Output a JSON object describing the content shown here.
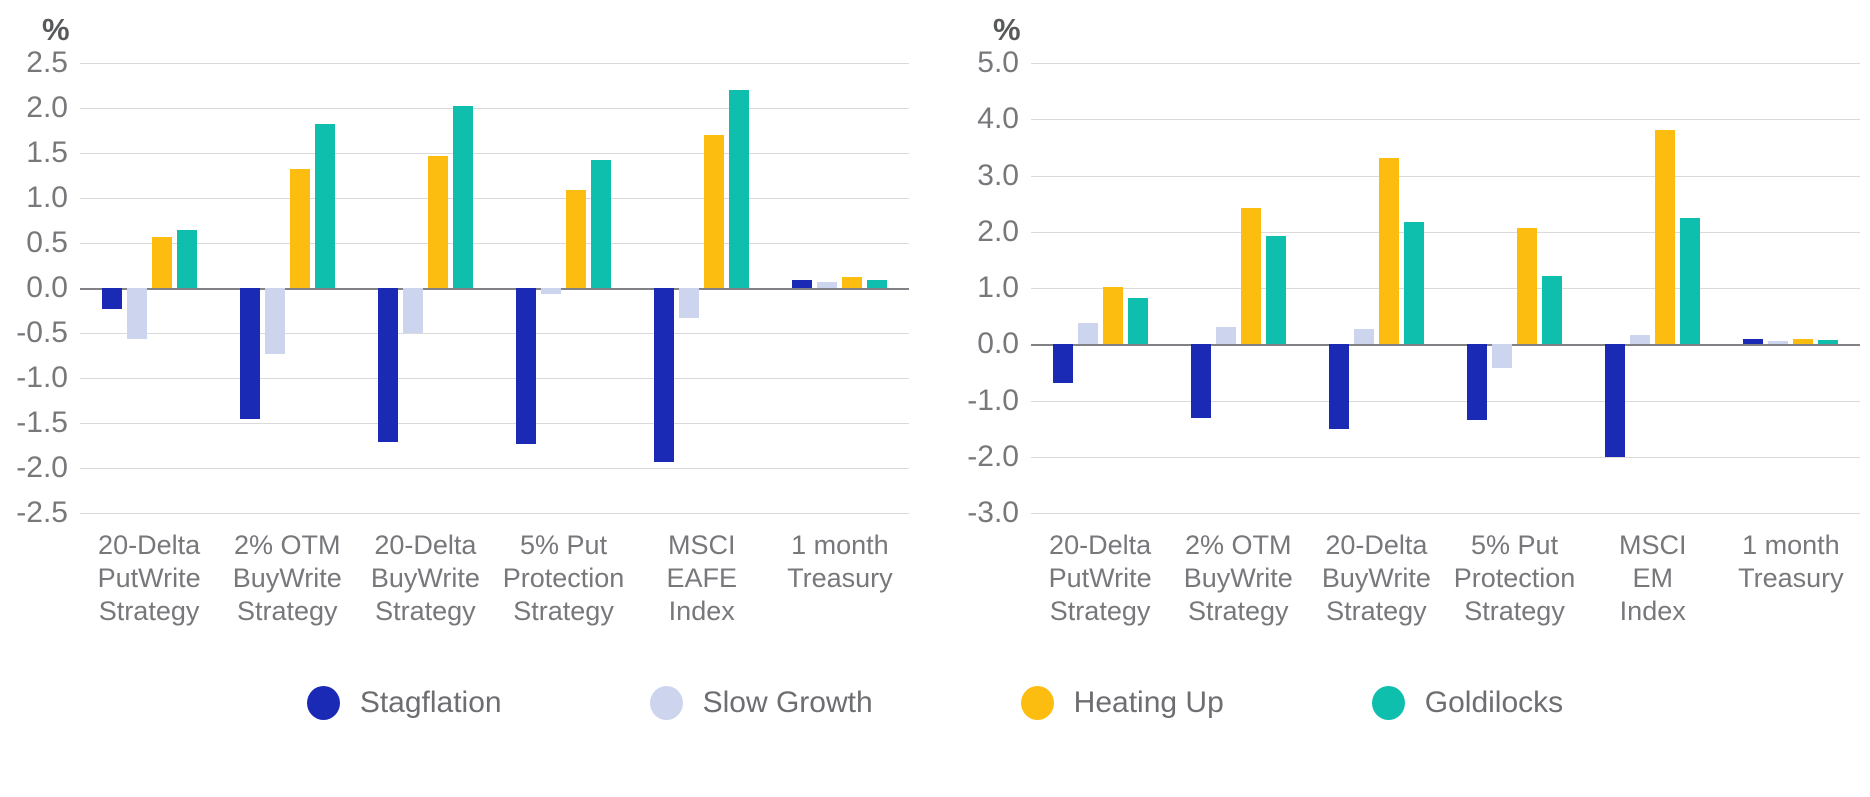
{
  "colors": {
    "background": "#ffffff",
    "stagflation": "#1a2ab5",
    "slow_growth": "#cdd4ee",
    "heating_up": "#fdbd10",
    "goldilocks": "#0fbfae",
    "gridline": "#dadada",
    "zero_line": "#808285",
    "axis_text": "#77787b",
    "unit_text": "#58595b"
  },
  "legend": {
    "items": [
      {
        "label": "Stagflation",
        "color": "#1a2ab5"
      },
      {
        "label": "Slow Growth",
        "color": "#cdd4ee"
      },
      {
        "label": "Heating Up",
        "color": "#fdbd10"
      },
      {
        "label": "Goldilocks",
        "color": "#0fbfae"
      }
    ]
  },
  "chart_data": [
    {
      "type": "bar",
      "title": "",
      "ylabel": "%",
      "xlabel": "",
      "grid": true,
      "legend_position": "bottom",
      "ylim": [
        -2.5,
        2.5
      ],
      "ytick_step": 0.5,
      "categories": [
        "20-Delta\nPutWrite\nStrategy",
        "2% OTM\nBuyWrite\nStrategy",
        "20-Delta\nBuyWrite\nStrategy",
        "5% Put\nProtection\nStrategy",
        "MSCI\nEAFE\nIndex",
        "1 month\nTreasury"
      ],
      "series": [
        {
          "name": "Stagflation",
          "color": "#1a2ab5",
          "values": [
            -0.23,
            -1.45,
            -1.71,
            -1.73,
            -1.93,
            0.09
          ]
        },
        {
          "name": "Slow Growth",
          "color": "#cdd4ee",
          "values": [
            -0.57,
            -0.73,
            -0.5,
            -0.07,
            -0.33,
            0.07
          ]
        },
        {
          "name": "Heating Up",
          "color": "#fdbd10",
          "values": [
            0.57,
            1.32,
            1.47,
            1.09,
            1.7,
            0.12
          ]
        },
        {
          "name": "Goldilocks",
          "color": "#0fbfae",
          "values": [
            0.64,
            1.82,
            2.02,
            1.42,
            2.2,
            0.09
          ]
        }
      ]
    },
    {
      "type": "bar",
      "title": "",
      "ylabel": "%",
      "xlabel": "",
      "grid": true,
      "legend_position": "bottom",
      "ylim": [
        -3.0,
        5.0
      ],
      "ytick_step": 1.0,
      "categories": [
        "20-Delta\nPutWrite\nStrategy",
        "2% OTM\nBuyWrite\nStrategy",
        "20-Delta\nBuyWrite\nStrategy",
        "5% Put\nProtection\nStrategy",
        "MSCI\nEM\nIndex",
        "1 month\nTreasury"
      ],
      "series": [
        {
          "name": "Stagflation",
          "color": "#1a2ab5",
          "values": [
            -0.68,
            -1.31,
            -1.51,
            -1.35,
            -2.0,
            0.1
          ]
        },
        {
          "name": "Slow Growth",
          "color": "#cdd4ee",
          "values": [
            0.37,
            0.31,
            0.27,
            -0.43,
            0.17,
            0.05
          ]
        },
        {
          "name": "Heating Up",
          "color": "#fdbd10",
          "values": [
            1.02,
            2.42,
            3.31,
            2.06,
            3.81,
            0.1
          ]
        },
        {
          "name": "Goldilocks",
          "color": "#0fbfae",
          "values": [
            0.83,
            1.93,
            2.17,
            1.21,
            2.24,
            0.08
          ]
        }
      ]
    }
  ]
}
